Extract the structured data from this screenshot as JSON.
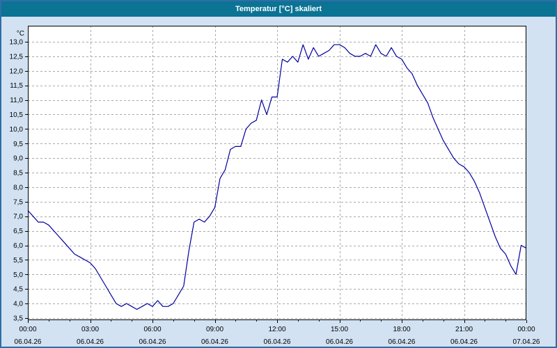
{
  "window": {
    "title": "Temperatur [°C] skaliert"
  },
  "colors": {
    "titlebar": "#0B7394",
    "window_bg": "#D2E2F2",
    "plot_bg": "#FFFFFF",
    "border": "#2E6DA8",
    "grid": "#A9A9A9",
    "axis": "#000000",
    "line": "#0000A0"
  },
  "chart_data": {
    "type": "line",
    "title": "Temperatur [°C] skaliert",
    "ylabel": "°C",
    "y_unit_label": "°C",
    "ylim": [
      3.5,
      13.0
    ],
    "y_tick_step": 0.5,
    "y_ticks": [
      3.5,
      4.0,
      4.5,
      5.0,
      5.5,
      6.0,
      6.5,
      7.0,
      7.5,
      8.0,
      8.5,
      9.0,
      9.5,
      10.0,
      10.5,
      11.0,
      11.5,
      12.0,
      12.5,
      13.0
    ],
    "y_tick_labels": [
      "3,5",
      "4,0",
      "4,5",
      "5,0",
      "5,5",
      "6,0",
      "6,5",
      "7,0",
      "7,5",
      "8,0",
      "8,5",
      "9,0",
      "9,5",
      "10,0",
      "10,5",
      "11,0",
      "11,5",
      "12,0",
      "12,5",
      "13,0"
    ],
    "xlim_hours": [
      0,
      24
    ],
    "x_ticks_hours": [
      0,
      3,
      6,
      9,
      12,
      15,
      18,
      21,
      24
    ],
    "x_tick_labels": [
      "00:00",
      "03:00",
      "06:00",
      "09:00",
      "12:00",
      "15:00",
      "18:00",
      "21:00",
      "00:00"
    ],
    "x_date_labels": [
      "06.04.26",
      "06.04.26",
      "06.04.26",
      "06.04.26",
      "06.04.26",
      "06.04.26",
      "06.04.26",
      "06.04.26",
      "07.04.26"
    ],
    "grid": true,
    "legend": "none",
    "line_color": "#0000A0",
    "points": [
      [
        0,
        7.2
      ],
      [
        0.25,
        7.0
      ],
      [
        0.5,
        6.8
      ],
      [
        0.75,
        6.8
      ],
      [
        1,
        6.7
      ],
      [
        1.25,
        6.5
      ],
      [
        1.5,
        6.3
      ],
      [
        1.75,
        6.1
      ],
      [
        2,
        5.9
      ],
      [
        2.25,
        5.7
      ],
      [
        2.5,
        5.6
      ],
      [
        2.75,
        5.5
      ],
      [
        3,
        5.4
      ],
      [
        3.25,
        5.2
      ],
      [
        3.5,
        4.9
      ],
      [
        3.75,
        4.6
      ],
      [
        4,
        4.3
      ],
      [
        4.25,
        4.0
      ],
      [
        4.5,
        3.9
      ],
      [
        4.75,
        4.0
      ],
      [
        5,
        3.9
      ],
      [
        5.25,
        3.8
      ],
      [
        5.5,
        3.9
      ],
      [
        5.75,
        4.0
      ],
      [
        6,
        3.9
      ],
      [
        6.25,
        4.1
      ],
      [
        6.5,
        3.9
      ],
      [
        6.75,
        3.9
      ],
      [
        7,
        4.0
      ],
      [
        7.25,
        4.3
      ],
      [
        7.5,
        4.6
      ],
      [
        7.75,
        5.8
      ],
      [
        8,
        6.8
      ],
      [
        8.25,
        6.9
      ],
      [
        8.5,
        6.8
      ],
      [
        8.75,
        7.0
      ],
      [
        9,
        7.3
      ],
      [
        9.25,
        8.3
      ],
      [
        9.5,
        8.6
      ],
      [
        9.75,
        9.3
      ],
      [
        10,
        9.4
      ],
      [
        10.25,
        9.4
      ],
      [
        10.5,
        10.0
      ],
      [
        10.75,
        10.2
      ],
      [
        11,
        10.3
      ],
      [
        11.25,
        11.0
      ],
      [
        11.5,
        10.5
      ],
      [
        11.75,
        11.1
      ],
      [
        12,
        11.1
      ],
      [
        12.25,
        12.4
      ],
      [
        12.5,
        12.3
      ],
      [
        12.75,
        12.5
      ],
      [
        13,
        12.3
      ],
      [
        13.25,
        12.9
      ],
      [
        13.5,
        12.4
      ],
      [
        13.75,
        12.8
      ],
      [
        14,
        12.5
      ],
      [
        14.25,
        12.6
      ],
      [
        14.5,
        12.7
      ],
      [
        14.75,
        12.9
      ],
      [
        15,
        12.9
      ],
      [
        15.25,
        12.8
      ],
      [
        15.5,
        12.6
      ],
      [
        15.75,
        12.5
      ],
      [
        16,
        12.5
      ],
      [
        16.25,
        12.6
      ],
      [
        16.5,
        12.5
      ],
      [
        16.75,
        12.9
      ],
      [
        17,
        12.6
      ],
      [
        17.25,
        12.5
      ],
      [
        17.5,
        12.8
      ],
      [
        17.75,
        12.5
      ],
      [
        18,
        12.4
      ],
      [
        18.25,
        12.1
      ],
      [
        18.5,
        11.9
      ],
      [
        18.75,
        11.5
      ],
      [
        19,
        11.2
      ],
      [
        19.25,
        10.9
      ],
      [
        19.5,
        10.4
      ],
      [
        19.75,
        10.0
      ],
      [
        20,
        9.6
      ],
      [
        20.25,
        9.3
      ],
      [
        20.5,
        9.0
      ],
      [
        20.75,
        8.8
      ],
      [
        21,
        8.7
      ],
      [
        21.25,
        8.5
      ],
      [
        21.5,
        8.2
      ],
      [
        21.75,
        7.8
      ],
      [
        22,
        7.3
      ],
      [
        22.25,
        6.8
      ],
      [
        22.5,
        6.3
      ],
      [
        22.75,
        5.9
      ],
      [
        23,
        5.7
      ],
      [
        23.25,
        5.3
      ],
      [
        23.5,
        5.0
      ],
      [
        23.75,
        6.0
      ],
      [
        24,
        5.9
      ]
    ]
  }
}
